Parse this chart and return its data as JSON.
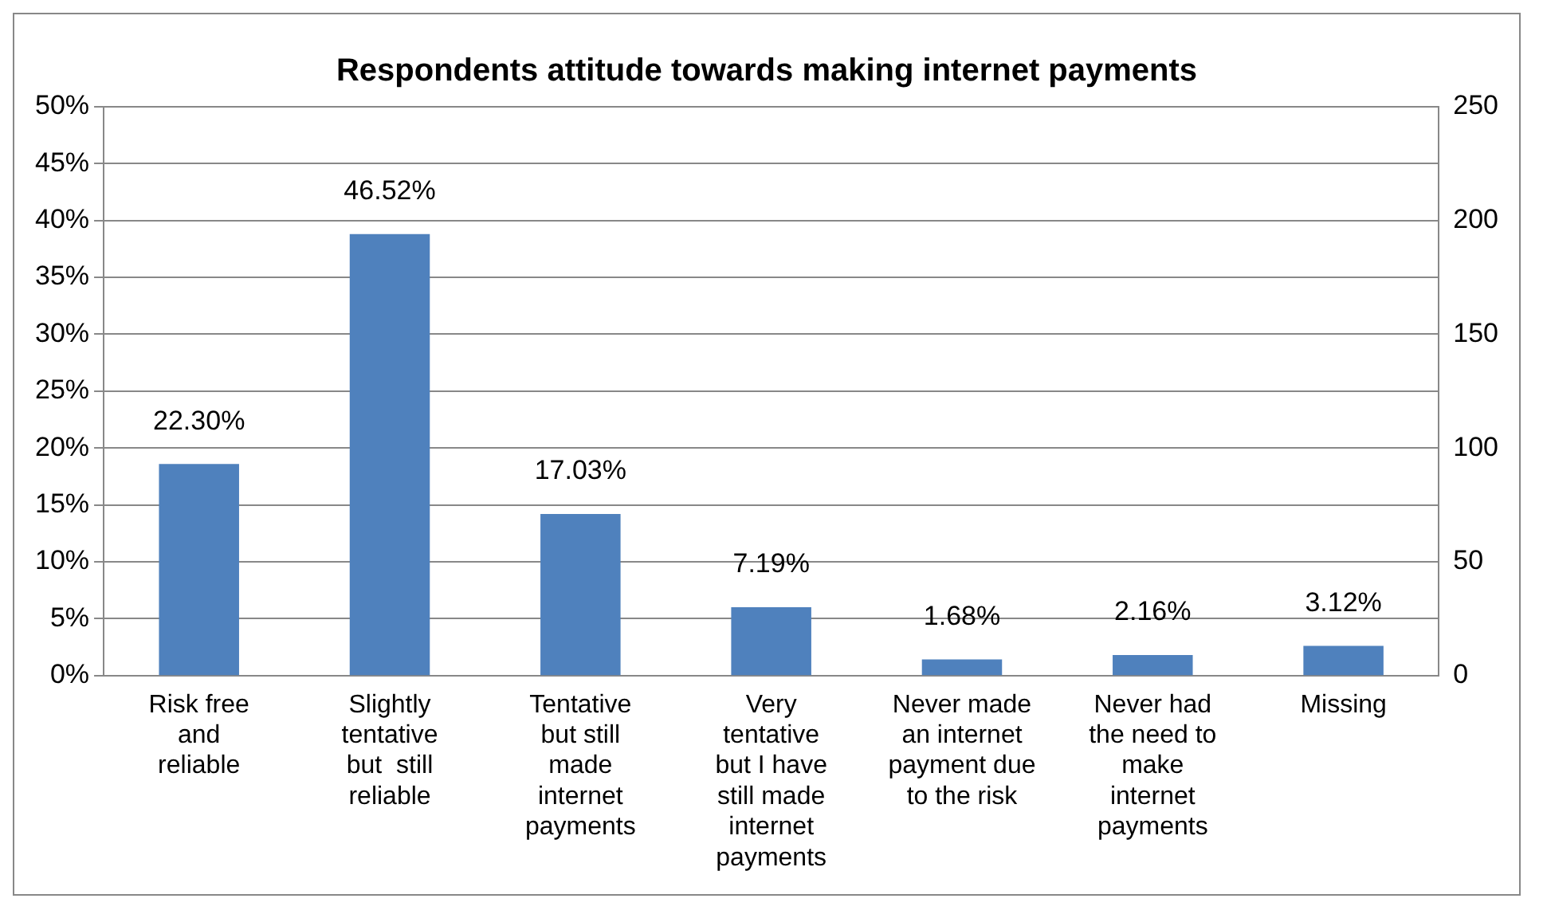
{
  "chart_data": {
    "type": "bar",
    "title": "Respondents attitude towards making internet payments",
    "categories": [
      "Risk free and reliable",
      "Slightly tentative but  still reliable",
      "Tentative but still made internet payments",
      "Very tentative but I have still made internet payments",
      "Never made an internet payment due to the risk",
      "Never had the need to make internet payments",
      "Missing"
    ],
    "series": [
      {
        "color": "#4f81bd",
        "axis": "y2",
        "values": [
          93,
          194,
          71,
          30,
          7,
          9,
          13
        ]
      }
    ],
    "annotations": [
      "22.30%",
      "46.52%",
      "17.03%",
      "7.19%",
      "1.68%",
      "2.16%",
      "3.12%"
    ],
    "ylim": [
      0,
      50
    ],
    "yticks": [
      {
        "value": 0,
        "label": "0%"
      },
      {
        "value": 5,
        "label": "5%"
      },
      {
        "value": 10,
        "label": "10%"
      },
      {
        "value": 15,
        "label": "15%"
      },
      {
        "value": 20,
        "label": "20%"
      },
      {
        "value": 25,
        "label": "25%"
      },
      {
        "value": 30,
        "label": "30%"
      },
      {
        "value": 35,
        "label": "35%"
      },
      {
        "value": 40,
        "label": "40%"
      },
      {
        "value": 45,
        "label": "45%"
      },
      {
        "value": 50,
        "label": "50%"
      }
    ],
    "y2lim": [
      0,
      250
    ],
    "y2ticks": [
      0,
      50,
      100,
      150,
      200,
      250
    ],
    "grid": "y",
    "legend": false
  }
}
